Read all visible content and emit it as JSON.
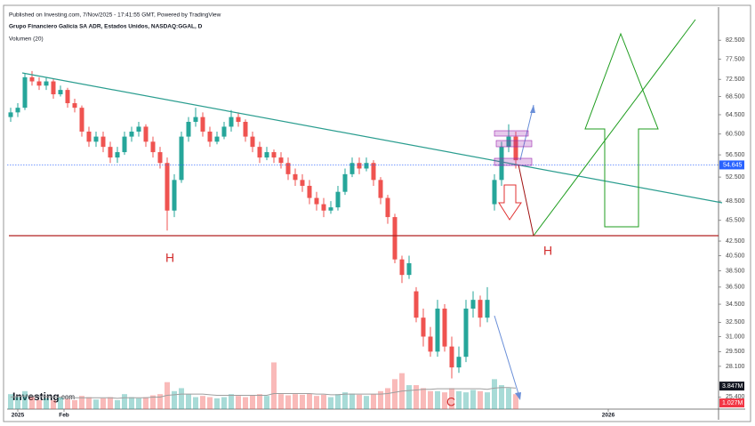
{
  "header": {
    "published": "Published on Investing.com, 7/Nov/2025 - 17:41:55 GMT, Powered by TradingView",
    "title": "Grupo Financiero Galicia SA ADR, Estados Unidos, NASDAQ:GGAL, D",
    "indicator": "Volumen (20)",
    "logo": "Investing",
    "logo_suffix": ".com"
  },
  "chart_data": {
    "type": "candlestick",
    "log": true,
    "x": [
      1,
      3,
      5,
      7,
      9,
      11,
      13,
      15,
      17,
      19,
      21,
      23,
      25,
      27,
      29,
      31,
      33,
      35,
      37,
      39,
      41,
      43,
      45,
      47,
      49,
      51,
      53,
      55,
      57,
      59,
      61,
      63,
      65,
      67,
      69,
      71,
      73,
      75,
      77,
      79,
      81,
      83,
      85,
      87,
      89,
      91,
      93,
      95,
      97,
      99,
      101,
      103,
      105,
      107,
      109,
      111,
      113,
      115,
      117,
      119,
      121,
      123,
      125,
      127,
      129,
      131,
      133,
      135,
      137,
      139,
      141,
      143
    ],
    "open": [
      64,
      65,
      66,
      73,
      72,
      71,
      72,
      69,
      70,
      67,
      66,
      61,
      59,
      60,
      58,
      56,
      57,
      60,
      61,
      62,
      59,
      57,
      55,
      47,
      52,
      60,
      63,
      64,
      61,
      59,
      60,
      62,
      64,
      63,
      60,
      58,
      56,
      57,
      56,
      55,
      53,
      52,
      51,
      49,
      48,
      47,
      47.5,
      50,
      53,
      55,
      54,
      55,
      52,
      49,
      46,
      40,
      38,
      36,
      33,
      31,
      29.5,
      34,
      30,
      28,
      29,
      34,
      35,
      33,
      48,
      52,
      58,
      60
    ],
    "high": [
      66,
      67,
      74,
      74.5,
      73,
      73,
      72.5,
      71,
      70.5,
      68,
      66.5,
      62,
      61,
      61,
      59,
      58,
      61,
      62,
      63,
      62.5,
      60,
      58,
      56,
      53,
      61,
      64,
      66,
      65,
      62,
      61,
      63,
      65.5,
      65,
      63.5,
      61,
      59,
      58,
      57.5,
      57,
      56,
      54,
      53,
      52,
      50,
      49,
      48.5,
      51,
      54,
      56,
      56,
      56,
      55.5,
      52.5,
      49.5,
      46.5,
      40.5,
      40.5,
      36.5,
      34,
      32,
      35,
      34.5,
      31,
      30,
      35,
      36,
      35.5,
      36.5,
      53,
      59,
      62.5,
      61
    ],
    "low": [
      63,
      64,
      65.5,
      71,
      70,
      70,
      68,
      68.5,
      66,
      65,
      60,
      58,
      58,
      57,
      55,
      55,
      56.5,
      59,
      60,
      58,
      56,
      54,
      44,
      46,
      51.5,
      59,
      62,
      60,
      58,
      58.5,
      59.5,
      61,
      62,
      59,
      57,
      55,
      55.5,
      55,
      54,
      52,
      51,
      50,
      48,
      47,
      46,
      46.5,
      47,
      49.5,
      52.5,
      53,
      53.5,
      51,
      48,
      45,
      39.5,
      37,
      37.5,
      32.5,
      30,
      29,
      29,
      29.5,
      27,
      27.5,
      28.5,
      33,
      32,
      32.5,
      47,
      51,
      57,
      54
    ],
    "close": [
      65,
      66,
      73,
      72,
      71,
      72,
      69,
      70,
      67,
      66,
      61,
      59,
      60,
      58,
      56,
      57,
      60,
      61,
      62,
      59,
      57,
      55,
      47,
      52,
      60,
      63,
      64,
      61,
      59,
      60,
      62,
      64,
      63,
      60,
      58,
      56,
      57,
      56,
      55,
      53,
      52,
      51,
      49,
      48,
      47,
      47.5,
      50,
      53,
      55,
      54,
      55,
      52,
      49,
      46,
      40,
      38,
      39.5,
      33,
      31,
      29.5,
      34,
      30,
      28,
      29,
      34,
      35,
      33,
      35,
      52,
      58,
      60,
      55.5
    ],
    "up_color": "#26a69a",
    "down_color": "#ef5350",
    "xlim": [
      0,
      200
    ],
    "xticks": [
      {
        "value": 3,
        "label": "2025"
      },
      {
        "value": 16,
        "label": "Feb"
      },
      {
        "value": 169,
        "label": "2026"
      }
    ],
    "ylim": [
      24.4,
      85
    ],
    "yticks": [
      {
        "value": 82.5,
        "label": "82.500"
      },
      {
        "value": 77.5,
        "label": "77.500"
      },
      {
        "value": 72.5,
        "label": "72.500"
      },
      {
        "value": 68.5,
        "label": "68.500"
      },
      {
        "value": 64.5,
        "label": "64.500"
      },
      {
        "value": 60.5,
        "label": "60.500"
      },
      {
        "value": 56.5,
        "label": "56.500"
      },
      {
        "value": 52.5,
        "label": "52.500"
      },
      {
        "value": 48.5,
        "label": "48.500"
      },
      {
        "value": 45.5,
        "label": "45.500"
      },
      {
        "value": 42.5,
        "label": "42.500"
      },
      {
        "value": 40.5,
        "label": "40.500"
      },
      {
        "value": 38.5,
        "label": "38.500"
      },
      {
        "value": 36.5,
        "label": "36.500"
      },
      {
        "value": 34.5,
        "label": "34.500"
      },
      {
        "value": 32.5,
        "label": "32.500"
      },
      {
        "value": 31,
        "label": "31.000"
      },
      {
        "value": 29.5,
        "label": "29.500"
      },
      {
        "value": 28.1,
        "label": "28.100"
      },
      {
        "value": 25.4,
        "label": "25.400"
      }
    ],
    "last_price": 54.645,
    "last_price_color": "#2962ff",
    "volume": {
      "values": [
        2.5,
        2,
        3,
        2,
        1.5,
        1.8,
        1.5,
        2,
        1.7,
        1.5,
        2.2,
        2,
        1.6,
        1.8,
        2,
        1.5,
        2.5,
        2,
        1.8,
        2,
        2.3,
        2.5,
        4.5,
        3,
        3.5,
        2.5,
        2,
        2.2,
        2,
        1.8,
        2,
        2.5,
        2.2,
        2,
        2.3,
        2.5,
        2.2,
        7.8,
        2.5,
        2.3,
        2.5,
        2.4,
        2.6,
        2.2,
        2.4,
        2,
        2.5,
        2.8,
        2.6,
        2.4,
        2.2,
        2.5,
        3,
        3.5,
        5,
        6,
        4,
        4,
        3.5,
        3,
        3,
        2.8,
        3.5,
        3,
        2.8,
        3.2,
        3,
        2.8,
        5,
        4,
        3.5,
        2.5
      ],
      "ma": [
        2,
        2.1,
        2.2,
        2.2,
        2.1,
        2.1,
        2,
        2,
        2,
        1.9,
        1.9,
        1.9,
        1.9,
        1.9,
        1.9,
        1.8,
        1.9,
        1.9,
        1.9,
        1.9,
        2,
        2,
        2.3,
        2.4,
        2.5,
        2.5,
        2.5,
        2.5,
        2.4,
        2.3,
        2.3,
        2.3,
        2.3,
        2.3,
        2.3,
        2.3,
        2.3,
        2.6,
        2.6,
        2.6,
        2.6,
        2.6,
        2.6,
        2.5,
        2.5,
        2.4,
        2.4,
        2.5,
        2.5,
        2.5,
        2.5,
        2.5,
        2.5,
        2.6,
        2.8,
        3,
        3.1,
        3.2,
        3.3,
        3.3,
        3.4,
        3.4,
        3.4,
        3.4,
        3.4,
        3.4,
        3.4,
        3.3,
        3.5,
        3.6,
        3.6,
        3.5
      ],
      "ma_color": "#9e9e9e",
      "vlim": [
        0,
        15
      ],
      "tags": [
        {
          "value": 3.847,
          "label": "3.847M",
          "color": "#131722"
        },
        {
          "value": 1.027,
          "label": "1.027M",
          "color": "#f23645"
        }
      ]
    },
    "annotations": [
      "H",
      "H",
      "C"
    ]
  }
}
